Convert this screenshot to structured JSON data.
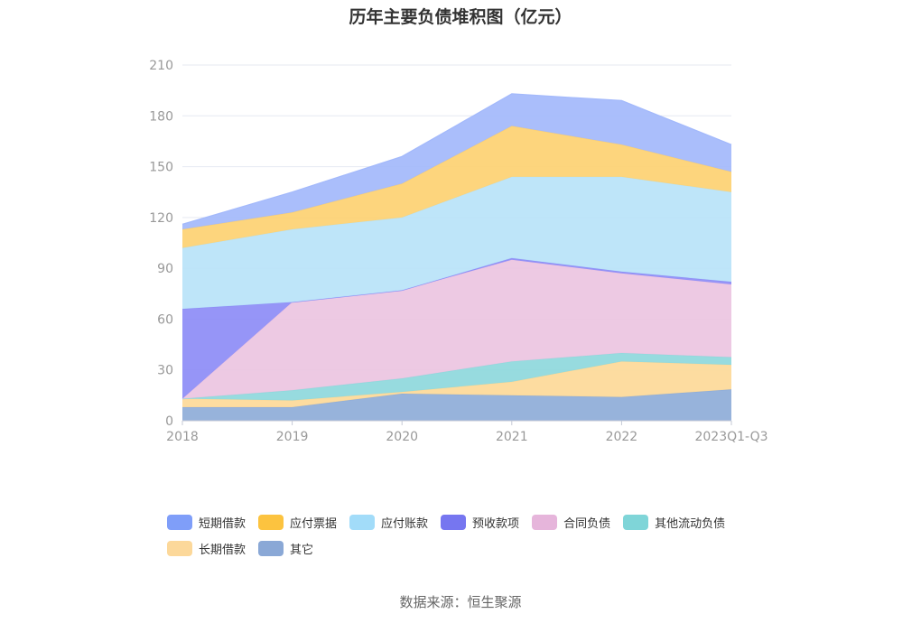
{
  "chart_data": {
    "type": "area",
    "stacked": true,
    "title": "历年主要负债堆积图（亿元）",
    "categories": [
      "2018",
      "2019",
      "2020",
      "2021",
      "2022",
      "2023Q1-Q3"
    ],
    "ylim": [
      0,
      210
    ],
    "yticks": [
      0,
      30,
      60,
      90,
      120,
      150,
      180,
      210
    ],
    "grid": true,
    "legend_position": "bottom",
    "series": [
      {
        "name": "其它",
        "color": "#8eacd8",
        "values": [
          8,
          8,
          16,
          15,
          14,
          18.5
        ]
      },
      {
        "name": "长期借款",
        "color": "#fdd998",
        "values": [
          5,
          4,
          1,
          8,
          21,
          14.5
        ]
      },
      {
        "name": "其他流动负债",
        "color": "#8ed8dc",
        "values": [
          0,
          6,
          8,
          12,
          5,
          4.5
        ]
      },
      {
        "name": "合同负债",
        "color": "#ebc4e1",
        "values": [
          0,
          52,
          52,
          60,
          47,
          43
        ]
      },
      {
        "name": "预收款项",
        "color": "#8d8cf6",
        "values": [
          53,
          0,
          0,
          1,
          1,
          1.5
        ]
      },
      {
        "name": "应付账款",
        "color": "#b9e3f8",
        "values": [
          36,
          43,
          43,
          48,
          56,
          53
        ]
      },
      {
        "name": "应付票据",
        "color": "#fdd172",
        "values": [
          11,
          10,
          20,
          30,
          19,
          12
        ]
      },
      {
        "name": "短期借款",
        "color": "#a3b9fb",
        "values": [
          3,
          12,
          16,
          19,
          26,
          16
        ]
      }
    ]
  },
  "legend": {
    "items": [
      {
        "label": "短期借款",
        "color": "#7f9ef9"
      },
      {
        "label": "应付票据",
        "color": "#fcc33f"
      },
      {
        "label": "应付账款",
        "color": "#a2dcf9"
      },
      {
        "label": "预收款项",
        "color": "#7676f0"
      },
      {
        "label": "合同负债",
        "color": "#e6b5db"
      },
      {
        "label": "其他流动负债",
        "color": "#7fd5d8"
      },
      {
        "label": "长期借款",
        "color": "#fcd89a"
      },
      {
        "label": "其它",
        "color": "#8aa8d6"
      }
    ]
  },
  "source": "数据来源：恒生聚源"
}
